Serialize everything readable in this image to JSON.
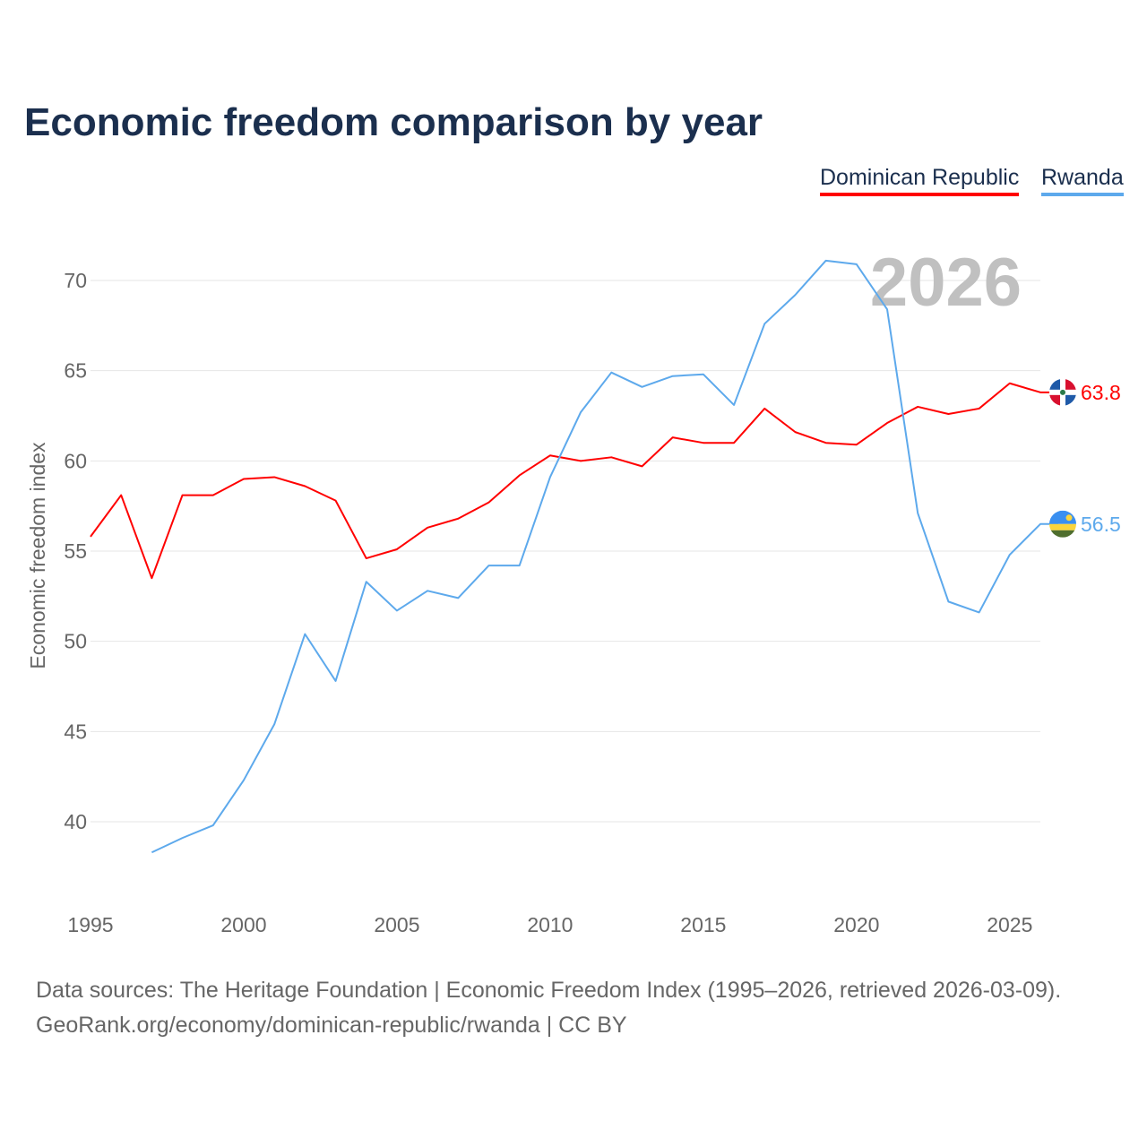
{
  "chart_data": {
    "type": "line",
    "title": "Economic freedom comparison by year",
    "xlabel": "",
    "ylabel": "Economic freedom index",
    "xlim": [
      1995,
      2026
    ],
    "ylim": [
      35,
      73
    ],
    "yticks": [
      40,
      45,
      50,
      55,
      60,
      65,
      70
    ],
    "xticks": [
      1995,
      2000,
      2005,
      2010,
      2015,
      2020,
      2025
    ],
    "grid": true,
    "legend": "top-right",
    "annotation": "2026",
    "series": [
      {
        "name": "Dominican Republic",
        "color": "#ff0000",
        "end_label": "63.8",
        "x": [
          1995,
          1996,
          1997,
          1998,
          1999,
          2000,
          2001,
          2002,
          2003,
          2004,
          2005,
          2006,
          2007,
          2008,
          2009,
          2010,
          2011,
          2012,
          2013,
          2014,
          2015,
          2016,
          2017,
          2018,
          2019,
          2020,
          2021,
          2022,
          2023,
          2024,
          2025,
          2026
        ],
        "values": [
          55.8,
          58.1,
          53.5,
          58.1,
          58.1,
          59.0,
          59.1,
          58.6,
          57.8,
          54.6,
          55.1,
          56.3,
          56.8,
          57.7,
          59.2,
          60.3,
          60.0,
          60.2,
          59.7,
          61.3,
          61.0,
          61.0,
          62.9,
          61.6,
          61.0,
          60.9,
          62.1,
          63.0,
          62.6,
          62.9,
          64.3,
          63.8
        ]
      },
      {
        "name": "Rwanda",
        "color": "#5da9ec",
        "end_label": "56.5",
        "x": [
          1997,
          1998,
          1999,
          2000,
          2001,
          2002,
          2003,
          2004,
          2005,
          2006,
          2007,
          2008,
          2009,
          2010,
          2011,
          2012,
          2013,
          2014,
          2015,
          2016,
          2017,
          2018,
          2019,
          2020,
          2021,
          2022,
          2023,
          2024,
          2025,
          2026
        ],
        "values": [
          38.3,
          39.1,
          39.8,
          42.3,
          45.4,
          50.4,
          47.8,
          53.3,
          51.7,
          52.8,
          52.4,
          54.2,
          54.2,
          59.1,
          62.7,
          64.9,
          64.1,
          64.7,
          64.8,
          63.1,
          67.6,
          69.2,
          71.1,
          70.9,
          68.4,
          57.1,
          52.2,
          51.6,
          54.8,
          56.5
        ]
      }
    ]
  },
  "source": {
    "line1": "Data sources: The Heritage Foundation | Economic Freedom Index (1995–2026, retrieved 2026-03-09).",
    "line2": "GeoRank.org/economy/dominican-republic/rwanda | CC BY"
  }
}
